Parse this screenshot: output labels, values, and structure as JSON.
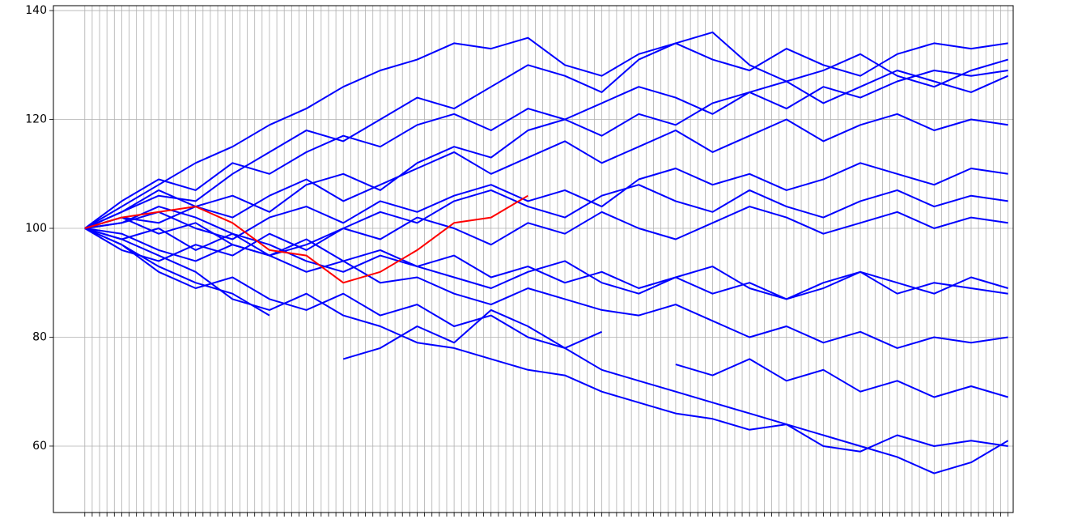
{
  "chart_data": {
    "type": "line",
    "x": [
      0,
      10,
      20,
      30,
      40,
      50,
      60,
      70,
      80,
      90,
      100,
      110,
      120,
      130,
      140,
      150,
      160,
      170,
      180,
      190,
      200,
      210,
      220,
      230,
      240,
      250
    ],
    "xlim": [
      -8.5,
      251.4
    ],
    "xticks": [
      0,
      2,
      4,
      6,
      8,
      10,
      12,
      14,
      16,
      18,
      20,
      22,
      24,
      26,
      28,
      30,
      32,
      34,
      36,
      38,
      40,
      42,
      44,
      46,
      48,
      50,
      52,
      54,
      56,
      58,
      60,
      62,
      64,
      66,
      68,
      70,
      72,
      74,
      76,
      78,
      80,
      82,
      84,
      86,
      88,
      90,
      92,
      94,
      96,
      98,
      100,
      102,
      104,
      106,
      108,
      110,
      112,
      114,
      116,
      118,
      120,
      122,
      124,
      126,
      128,
      130,
      132,
      134,
      136,
      138,
      140,
      142,
      144,
      146,
      148,
      150,
      152,
      154,
      156,
      158,
      160,
      162,
      164,
      166,
      168,
      170,
      172,
      174,
      176,
      178,
      180,
      182,
      184,
      186,
      188,
      190,
      192,
      194,
      196,
      198,
      200,
      202,
      204,
      206,
      208,
      210,
      212,
      214,
      216,
      218,
      220,
      222,
      224,
      226,
      228,
      230,
      232,
      234,
      236,
      238,
      240,
      242,
      244,
      246,
      248,
      250
    ],
    "ylim": [
      47.8,
      140.9
    ],
    "yticks": [
      60,
      80,
      100,
      120,
      140
    ],
    "grid": true,
    "series": [
      {
        "color": "#0000ff",
        "values": [
          100,
          104,
          108,
          112,
          115,
          119,
          122,
          126,
          129,
          131,
          134,
          133,
          135,
          130,
          128,
          132,
          134,
          131,
          129,
          133,
          130,
          128,
          132,
          134,
          133,
          134
        ]
      },
      {
        "color": "#0000ff",
        "values": [
          100,
          103,
          106,
          105,
          110,
          114,
          118,
          116,
          120,
          124,
          122,
          126,
          130,
          128,
          125,
          131,
          134,
          136,
          130,
          127,
          129,
          132,
          128,
          126,
          129,
          131
        ]
      },
      {
        "color": "#0000ff",
        "values": [
          100,
          97,
          93,
          90,
          88,
          84,
          null,
          76,
          78,
          82,
          79,
          85,
          82,
          78,
          74,
          72,
          70,
          68,
          66,
          64,
          62,
          60,
          58,
          55,
          57,
          61
        ]
      },
      {
        "color": "#0000ff",
        "values": [
          100,
          98,
          95,
          92,
          87,
          85,
          88,
          84,
          82,
          79,
          78,
          76,
          74,
          73,
          70,
          68,
          66,
          65,
          63,
          64,
          60,
          59,
          62,
          60,
          61,
          60
        ]
      },
      {
        "color": "#0000ff",
        "values": [
          100,
          102,
          101,
          104,
          106,
          103,
          108,
          110,
          107,
          112,
          115,
          113,
          118,
          120,
          117,
          121,
          119,
          123,
          125,
          122,
          126,
          124,
          127,
          129,
          128,
          129
        ]
      },
      {
        "color": "#0000ff",
        "values": [
          100,
          99,
          96,
          94,
          97,
          95,
          92,
          94,
          90,
          91,
          88,
          86,
          89,
          87,
          85,
          84,
          86,
          83,
          80,
          82,
          79,
          81,
          78,
          80,
          79,
          80
        ]
      },
      {
        "color": "#0000ff",
        "values": [
          100,
          101,
          103,
          100,
          98,
          102,
          104,
          101,
          105,
          103,
          106,
          108,
          105,
          107,
          104,
          109,
          111,
          108,
          110,
          107,
          109,
          112,
          110,
          108,
          111,
          110
        ]
      },
      {
        "color": "#0000ff",
        "values": [
          100,
          96,
          94,
          97,
          95,
          99,
          96,
          100,
          98,
          102,
          100,
          97,
          101,
          99,
          103,
          100,
          98,
          101,
          104,
          102,
          99,
          101,
          103,
          100,
          102,
          101
        ]
      },
      {
        "color": "#0000ff",
        "values": [
          100,
          105,
          109,
          107,
          112,
          110,
          114,
          117,
          115,
          119,
          121,
          118,
          122,
          120,
          123,
          126,
          124,
          121,
          125,
          127,
          123,
          126,
          129,
          127,
          125,
          128
        ]
      },
      {
        "color": "#0000ff",
        "values": [
          100,
          97,
          92,
          89,
          91,
          87,
          85,
          88,
          84,
          86,
          82,
          84,
          80,
          78,
          81,
          null,
          75,
          73,
          76,
          72,
          74,
          70,
          72,
          69,
          71,
          69
        ]
      },
      {
        "color": "#0000ff",
        "values": [
          100,
          102,
          99,
          101,
          97,
          95,
          98,
          94,
          96,
          93,
          95,
          91,
          93,
          90,
          92,
          89,
          91,
          88,
          90,
          87,
          89,
          92,
          90,
          88,
          91,
          89
        ]
      },
      {
        "color": "#0000ff",
        "values": [
          100,
          103,
          107,
          104,
          102,
          106,
          109,
          105,
          108,
          111,
          114,
          110,
          113,
          116,
          112,
          115,
          118,
          114,
          117,
          120,
          116,
          119,
          121,
          118,
          120,
          119
        ]
      },
      {
        "color": "#0000ff",
        "values": [
          100,
          98,
          100,
          96,
          99,
          95,
          97,
          100,
          103,
          101,
          105,
          107,
          104,
          102,
          106,
          108,
          105,
          103,
          107,
          104,
          102,
          105,
          107,
          104,
          106,
          105
        ]
      },
      {
        "color": "#0000ff",
        "values": [
          100,
          101,
          104,
          102,
          99,
          97,
          94,
          92,
          95,
          93,
          91,
          89,
          92,
          94,
          90,
          88,
          91,
          93,
          89,
          87,
          90,
          92,
          88,
          90,
          89,
          88
        ]
      },
      {
        "color": "#ff0000",
        "values": [
          100,
          102,
          103,
          104,
          101,
          96,
          95,
          90,
          92,
          96,
          101,
          102,
          106,
          null,
          null,
          null,
          null,
          null,
          null,
          null,
          null,
          null,
          null,
          null,
          null,
          null
        ]
      }
    ]
  }
}
